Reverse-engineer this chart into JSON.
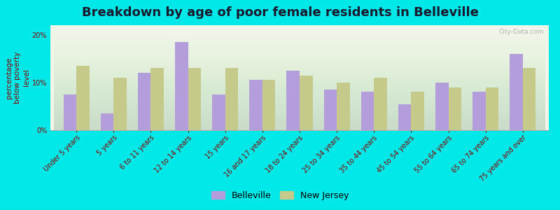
{
  "title": "Breakdown by age of poor female residents in Belleville",
  "ylabel": "percentage\nbelow poverty\nlevel",
  "categories": [
    "Under 5 years",
    "5 years",
    "6 to 11 years",
    "12 to 14 years",
    "15 years",
    "16 and 17 years",
    "18 to 24 years",
    "25 to 34 years",
    "35 to 44 years",
    "45 to 54 years",
    "55 to 64 years",
    "65 to 74 years",
    "75 years and over"
  ],
  "belleville": [
    7.5,
    3.5,
    12.0,
    18.5,
    7.5,
    10.5,
    12.5,
    8.5,
    8.0,
    5.5,
    10.0,
    8.0,
    16.0
  ],
  "new_jersey": [
    13.5,
    11.0,
    13.0,
    13.0,
    13.0,
    10.5,
    11.5,
    10.0,
    11.0,
    8.0,
    9.0,
    9.0,
    13.0
  ],
  "belleville_color": "#b39ddb",
  "new_jersey_color": "#c5c98a",
  "background_color": "#00e8e8",
  "plot_bg_color": "#f0f5e8",
  "ylim": [
    0,
    22
  ],
  "yticks": [
    0,
    10,
    20
  ],
  "ytick_labels": [
    "0%",
    "10%",
    "20%"
  ],
  "title_fontsize": 13,
  "axis_label_fontsize": 7.5,
  "tick_fontsize": 7,
  "legend_labels": [
    "Belleville",
    "New Jersey"
  ],
  "bar_width": 0.35,
  "watermark": "City-Data.com"
}
